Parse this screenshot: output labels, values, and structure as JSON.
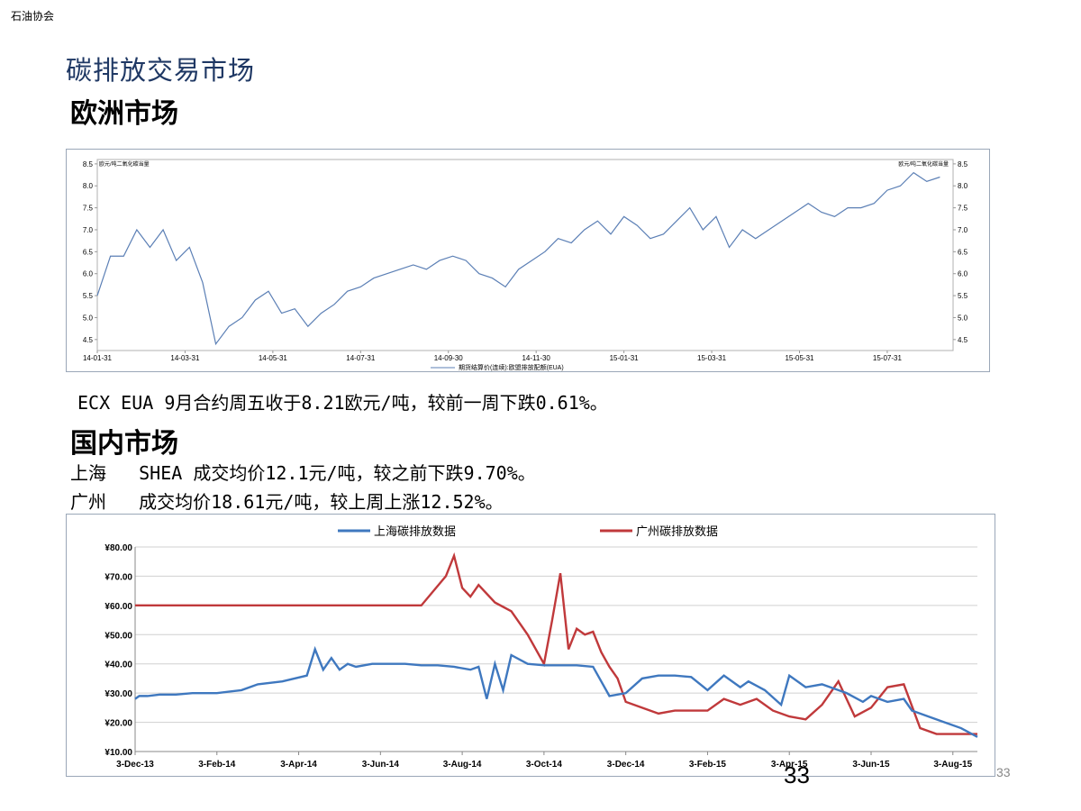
{
  "header": {
    "org": "石油协会",
    "title": "碳排放交易市场"
  },
  "europe": {
    "heading": "欧洲市场",
    "summary": "ECX EUA 9月合约周五收于8.21欧元/吨，较前一周下跌0.61%。"
  },
  "domestic": {
    "heading": "国内市场",
    "shanghai_line": "上海   SHEA 成交均价12.1元/吨，较之前下跌9.70%。",
    "guangzhou_line": "广州   成交均价18.61元/吨，较上周上涨12.52%。"
  },
  "page": {
    "number": "33",
    "small_number": "33"
  },
  "colors": {
    "eua": "#5b7fb5",
    "shanghai": "#3f78bf",
    "guangzhou": "#c0393b",
    "title": "#1f3864"
  },
  "chart_data": [
    {
      "type": "line",
      "title": "",
      "left_label": "欧元/吨二氧化碳当量",
      "right_label": "欧元/吨二氧化碳当量",
      "legend": "期货结算价(连续):欧盟排放配额(EUA)",
      "legend_position": "bottom",
      "ylim": [
        4.25,
        8.6
      ],
      "yticks": [
        "8.5",
        "8.0",
        "7.5",
        "7.0",
        "6.5",
        "6.0",
        "5.5",
        "5.0",
        "4.5"
      ],
      "xlim": [
        0,
        19.5
      ],
      "xticks": [
        "14-01-31",
        "14-03-31",
        "14-05-31",
        "14-07-31",
        "14-09-30",
        "14-11-30",
        "15-01-31",
        "15-03-31",
        "15-05-31",
        "15-07-31"
      ],
      "series": [
        {
          "name": "期货结算价(连续):欧盟排放配额(EUA)",
          "x": [
            0,
            0.3,
            0.6,
            0.9,
            1.2,
            1.5,
            1.8,
            2.1,
            2.4,
            2.7,
            3.0,
            3.3,
            3.6,
            3.9,
            4.2,
            4.5,
            4.8,
            5.1,
            5.4,
            5.7,
            6.0,
            6.3,
            6.6,
            6.9,
            7.2,
            7.5,
            7.8,
            8.1,
            8.4,
            8.7,
            9.0,
            9.3,
            9.6,
            9.9,
            10.2,
            10.5,
            10.8,
            11.1,
            11.4,
            11.7,
            12.0,
            12.3,
            12.6,
            12.9,
            13.2,
            13.5,
            13.8,
            14.1,
            14.4,
            14.7,
            15.0,
            15.3,
            15.6,
            15.9,
            16.2,
            16.5,
            16.8,
            17.1,
            17.4,
            17.7,
            18.0,
            18.3,
            18.6,
            18.9,
            19.2
          ],
          "y": [
            5.5,
            6.4,
            6.4,
            7.0,
            6.6,
            7.0,
            6.3,
            6.6,
            5.8,
            4.4,
            4.8,
            5.0,
            5.4,
            5.6,
            5.1,
            5.2,
            4.8,
            5.1,
            5.3,
            5.6,
            5.7,
            5.9,
            6.0,
            6.1,
            6.2,
            6.1,
            6.3,
            6.4,
            6.3,
            6.0,
            5.9,
            5.7,
            6.1,
            6.3,
            6.5,
            6.8,
            6.7,
            7.0,
            7.2,
            6.9,
            7.3,
            7.1,
            6.8,
            6.9,
            7.2,
            7.5,
            7.0,
            7.3,
            6.6,
            7.0,
            6.8,
            7.0,
            7.2,
            7.4,
            7.6,
            7.4,
            7.3,
            7.5,
            7.5,
            7.6,
            7.9,
            8.0,
            8.3,
            8.1,
            8.2
          ]
        }
      ]
    },
    {
      "type": "line",
      "title": "",
      "legend_position": "top",
      "yticks": [
        "¥80.00",
        "¥70.00",
        "¥60.00",
        "¥50.00",
        "¥40.00",
        "¥30.00",
        "¥20.00",
        "¥10.00"
      ],
      "ylim": [
        10,
        80
      ],
      "xticks": [
        "3-Dec-13",
        "3-Feb-14",
        "3-Apr-14",
        "3-Jun-14",
        "3-Aug-14",
        "3-Oct-14",
        "3-Dec-14",
        "3-Feb-15",
        "3-Apr-15",
        "3-Jun-15",
        "3-Aug-15"
      ],
      "xlim": [
        0,
        20.6
      ],
      "series": [
        {
          "name": "上海碳排放数据",
          "x": [
            0,
            0.1,
            0.3,
            0.6,
            1.0,
            1.4,
            2.0,
            2.6,
            3.0,
            3.6,
            4.2,
            4.4,
            4.6,
            4.8,
            5.0,
            5.2,
            5.4,
            5.8,
            6.2,
            6.6,
            7.0,
            7.4,
            7.8,
            8.2,
            8.4,
            8.6,
            8.8,
            9.0,
            9.2,
            9.6,
            10.0,
            10.4,
            10.8,
            11.2,
            11.6,
            12.0,
            12.4,
            12.8,
            13.2,
            13.6,
            14.0,
            14.4,
            14.8,
            15.0,
            15.4,
            15.8,
            16.0,
            16.4,
            16.8,
            17.0,
            17.4,
            17.8,
            18.0,
            18.4,
            18.8,
            19.0,
            19.4,
            19.8,
            20.2,
            20.6
          ],
          "y": [
            28,
            29,
            29,
            29.5,
            29.5,
            30,
            30,
            31,
            33,
            34,
            36,
            45,
            38,
            42,
            38,
            40,
            39,
            40,
            40,
            40,
            39.5,
            39.5,
            39,
            38,
            39,
            28,
            40,
            31,
            43,
            40,
            39.5,
            39.5,
            39.5,
            39,
            29,
            30,
            35,
            36,
            36,
            35.5,
            31,
            36,
            32,
            34,
            31,
            26,
            36,
            32,
            33,
            32,
            30,
            27,
            29,
            27,
            28,
            24,
            22,
            20,
            18,
            15
          ]
        },
        {
          "name": "广州碳排放数据",
          "x": [
            0,
            0.1,
            1.0,
            2.0,
            3.0,
            4.0,
            5.0,
            6.0,
            7.0,
            7.6,
            7.8,
            8.0,
            8.2,
            8.4,
            8.8,
            9.2,
            9.6,
            10.0,
            10.2,
            10.4,
            10.6,
            10.8,
            11.0,
            11.2,
            11.4,
            11.6,
            11.8,
            12.0,
            12.4,
            12.8,
            13.2,
            13.6,
            14.0,
            14.4,
            14.8,
            15.2,
            15.6,
            16.0,
            16.4,
            16.8,
            17.2,
            17.6,
            18.0,
            18.4,
            18.8,
            19.2,
            19.6,
            20.0,
            20.6
          ],
          "y": [
            60,
            60,
            60,
            60,
            60,
            60,
            60,
            60,
            60,
            70,
            77,
            66,
            63,
            67,
            61,
            58,
            50,
            40,
            55,
            71,
            45,
            52,
            50,
            51,
            44,
            39,
            35,
            27,
            25,
            23,
            24,
            24,
            24,
            28,
            26,
            28,
            24,
            22,
            21,
            26,
            34,
            22,
            25,
            32,
            33,
            18,
            16,
            16,
            16
          ]
        }
      ]
    }
  ]
}
